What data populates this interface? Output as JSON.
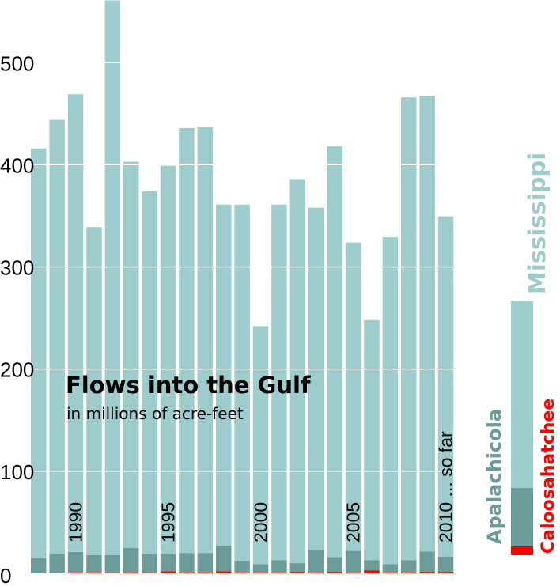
{
  "chart_data": {
    "type": "bar",
    "stacked": true,
    "title": "Flows into the Gulf",
    "subtitle": "in millions of acre-feet",
    "ylim": [
      0,
      560
    ],
    "yticks": [
      0,
      100,
      200,
      300,
      400,
      500
    ],
    "grid": true,
    "categories": [
      "1988",
      "1989",
      "1990",
      "1991",
      "1992",
      "1993",
      "1994",
      "1995",
      "1996",
      "1997",
      "1998",
      "1999",
      "2000",
      "2001",
      "2002",
      "2003",
      "2004",
      "2005",
      "2006",
      "2007",
      "2008",
      "2009",
      "2010"
    ],
    "category_labels": [
      {
        "index": 2,
        "text": "1990"
      },
      {
        "index": 7,
        "text": "1995"
      },
      {
        "index": 12,
        "text": "2000"
      },
      {
        "index": 17,
        "text": "2005"
      },
      {
        "index": 22,
        "text": "2010 ... so far"
      }
    ],
    "series": [
      {
        "name": "Caloosahatchee",
        "color": "#ff0000",
        "values": [
          0,
          0,
          1,
          1,
          0.5,
          1,
          0.5,
          2,
          1,
          1,
          2,
          1,
          1,
          1,
          1.5,
          1,
          1.5,
          1,
          3,
          1,
          1,
          1.5,
          1.5
        ]
      },
      {
        "name": "Apalachicola",
        "color": "#6b9c9a",
        "values": [
          15,
          19,
          20,
          17,
          17.5,
          24,
          18.5,
          17,
          19,
          19,
          25,
          11,
          8,
          12,
          8.5,
          22,
          14.5,
          21,
          10,
          8,
          12,
          20,
          15
        ]
      },
      {
        "name": "Mississippi",
        "color": "#9ecccc",
        "values": [
          401,
          425,
          448,
          321,
          543,
          378,
          355,
          380,
          416,
          417,
          334,
          349,
          233,
          348,
          376,
          335,
          402,
          302,
          235,
          320,
          453,
          446,
          333
        ]
      }
    ]
  }
}
